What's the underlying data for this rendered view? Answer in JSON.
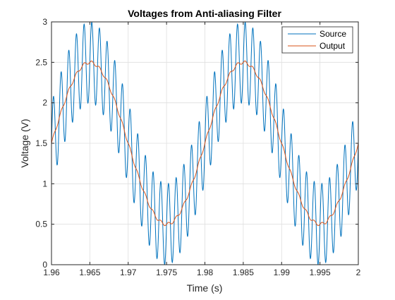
{
  "chart_data": {
    "type": "line",
    "title": "Voltages from Anti-aliasing Filter",
    "xlabel": "Time (s)",
    "ylabel": "Voltage (V)",
    "xlim": [
      1.96,
      2.0
    ],
    "ylim": [
      0,
      3
    ],
    "xticks": [
      "1.96",
      "1.965",
      "1.97",
      "1.975",
      "1.98",
      "1.985",
      "1.99",
      "1.995",
      "2"
    ],
    "xtick_values": [
      1.96,
      1.965,
      1.97,
      1.975,
      1.98,
      1.985,
      1.99,
      1.995,
      2.0
    ],
    "yticks": [
      "0",
      "0.5",
      "1",
      "1.5",
      "2",
      "2.5",
      "3"
    ],
    "ytick_values": [
      0,
      0.5,
      1,
      1.5,
      2,
      2.5,
      3
    ],
    "grid": true,
    "legend_position": "top-right",
    "series": [
      {
        "name": "Source",
        "color": "#0072bd",
        "description": "1.5 + 1.0*sin(2*pi*50*t) + 0.5*sin(2*pi*1000*t) (approx.)",
        "offset": 1.5,
        "components": [
          {
            "amplitude": 1.0,
            "frequency_hz": 50
          },
          {
            "amplitude": 0.5,
            "frequency_hz": 1000
          }
        ]
      },
      {
        "name": "Output",
        "color": "#d95319",
        "offset": 1.5,
        "components": [
          {
            "amplitude": 1.0,
            "frequency_hz": 50
          },
          {
            "amplitude": 0.02,
            "frequency_hz": 1000
          }
        ]
      }
    ]
  }
}
